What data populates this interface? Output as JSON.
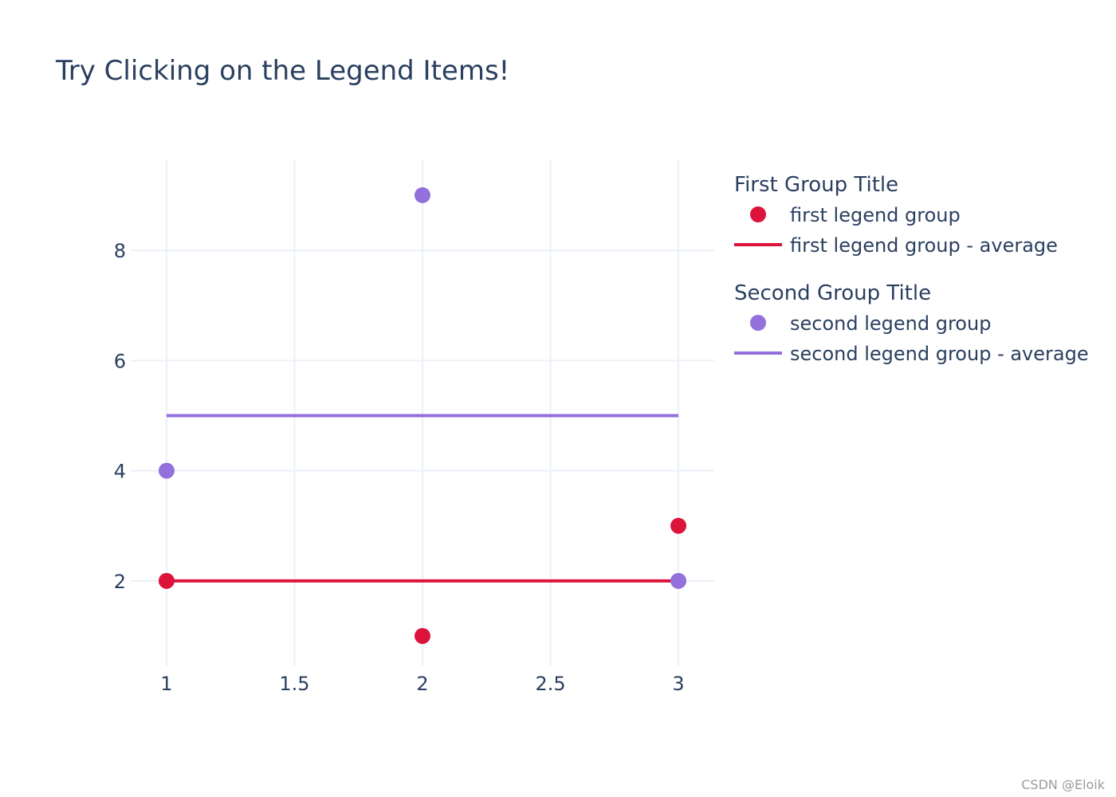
{
  "chart_data": {
    "type": "scatter",
    "title": "Try Clicking on the Legend Items!",
    "xlabel": "",
    "ylabel": "",
    "xlim": [
      0.86,
      3.14
    ],
    "ylim": [
      0.45,
      9.65
    ],
    "x_ticks": [
      1,
      1.5,
      2,
      2.5,
      3
    ],
    "x_tick_labels": [
      "1",
      "1.5",
      "2",
      "2.5",
      "3"
    ],
    "y_ticks": [
      2,
      4,
      6,
      8
    ],
    "y_tick_labels": [
      "2",
      "4",
      "6",
      "8"
    ],
    "grid": true,
    "legend_position": "right",
    "legend_groups": [
      {
        "title": "First Group Title",
        "items": [
          {
            "label": "first legend group",
            "marker": "circle",
            "color": "#dc143c"
          },
          {
            "label": "first legend group - average",
            "marker": "line",
            "color": "#dc143c"
          }
        ]
      },
      {
        "title": "Second Group Title",
        "items": [
          {
            "label": "second legend group",
            "marker": "circle",
            "color": "#9370db"
          },
          {
            "label": "second legend group - average",
            "marker": "line",
            "color": "#9370db"
          }
        ]
      }
    ],
    "series": [
      {
        "name": "first legend group",
        "mode": "markers",
        "color": "#dc143c",
        "x": [
          1,
          2,
          3
        ],
        "y": [
          2,
          1,
          3
        ]
      },
      {
        "name": "first legend group - average",
        "mode": "lines",
        "color": "#dc143c",
        "x": [
          1,
          3
        ],
        "y": [
          2,
          2
        ]
      },
      {
        "name": "second legend group",
        "mode": "markers",
        "color": "#9370db",
        "x": [
          1,
          2,
          3
        ],
        "y": [
          4,
          9,
          2
        ]
      },
      {
        "name": "second legend group - average",
        "mode": "lines",
        "color": "#9370db",
        "x": [
          1,
          3
        ],
        "y": [
          5,
          5
        ]
      }
    ]
  },
  "colors": {
    "text": "#2a3f5f",
    "grid": "#ebf0f8"
  },
  "watermark": "CSDN @Eloik"
}
